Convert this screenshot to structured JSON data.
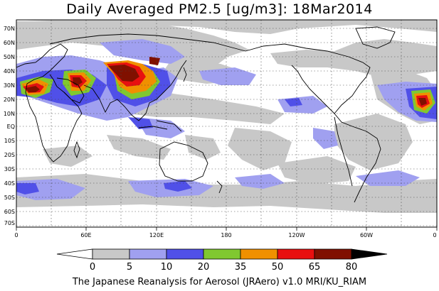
{
  "title": "Daily Averaged PM2.5 [ug/m3]: 18Mar2014",
  "footer": "The Japanese Reanalysis for Aerosol (JRAero) v1.0 MRI/KU_RIAM",
  "lat_labels": [
    "70N",
    "60N",
    "50N",
    "40N",
    "30N",
    "20N",
    "10N",
    "EQ",
    "10S",
    "20S",
    "30S",
    "40S",
    "50S",
    "60S",
    "70S"
  ],
  "lon_labels": [
    "0",
    "60E",
    "120E",
    "180",
    "120W",
    "60W",
    "0"
  ],
  "colorbar": {
    "thresholds": [
      "0",
      "5",
      "10",
      "20",
      "35",
      "50",
      "65",
      "80"
    ],
    "colors": [
      "#ffffff",
      "#c8c8c8",
      "#a0a0f0",
      "#5050e8",
      "#80c830",
      "#f09000",
      "#e81010",
      "#801000"
    ]
  }
}
